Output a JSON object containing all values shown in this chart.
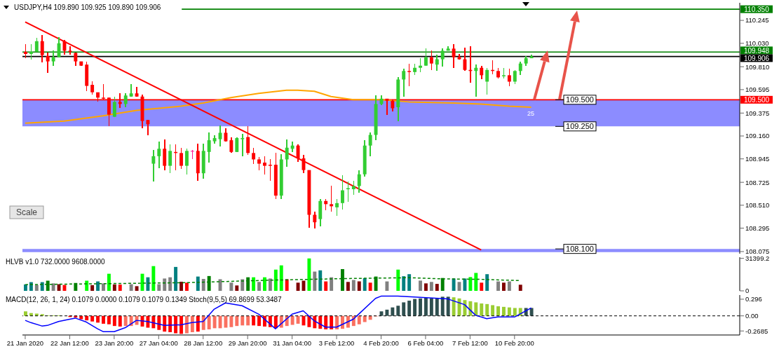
{
  "chart_data": [
    {
      "type": "candlestick",
      "title": "USDJPY,H4  109.890 109.925 109.890 109.906",
      "categories": [
        null,
        null,
        null,
        null,
        null,
        null,
        null,
        null,
        null,
        null,
        null,
        null,
        null,
        null,
        null,
        null,
        null,
        null,
        null,
        null,
        null,
        null,
        null,
        null,
        null,
        null,
        null,
        null,
        null,
        null,
        null,
        null,
        null,
        null,
        null,
        null,
        null,
        null,
        null,
        null,
        null,
        null,
        null,
        null,
        null,
        null,
        null,
        null,
        null,
        null,
        null,
        null,
        null,
        null,
        null,
        null,
        null,
        null,
        null,
        null,
        null,
        null,
        null,
        null,
        null,
        null,
        null,
        null,
        null,
        null,
        null,
        null,
        null,
        null,
        null,
        null,
        null,
        null,
        null,
        null,
        null,
        null,
        null,
        null,
        null,
        null,
        null,
        null,
        null,
        null,
        null,
        null,
        null,
        null,
        null,
        null,
        null,
        null,
        null,
        null,
        null,
        null,
        null,
        null,
        null,
        null,
        null,
        null,
        null,
        null,
        null,
        null,
        null,
        null,
        null,
        null,
        null,
        null,
        null,
        null,
        null,
        null,
        null,
        null,
        null,
        null,
        null,
        null,
        null
      ],
      "ohlc": [
        [
          109.95,
          110.02,
          109.89,
          109.93
        ],
        [
          109.93,
          110.02,
          109.88,
          109.95
        ],
        [
          109.95,
          110.08,
          109.95,
          110.05
        ],
        [
          110.05,
          110.11,
          109.85,
          109.92
        ],
        [
          109.91,
          109.94,
          109.75,
          109.86
        ],
        [
          109.86,
          109.96,
          109.82,
          109.9
        ],
        [
          109.9,
          110.09,
          109.9,
          110.03
        ],
        [
          110.05,
          110.06,
          109.92,
          109.96
        ],
        [
          109.96,
          110.0,
          109.92,
          109.95
        ],
        [
          109.94,
          109.94,
          109.82,
          109.86
        ],
        [
          109.86,
          109.86,
          109.82,
          109.82
        ],
        [
          109.83,
          109.86,
          109.58,
          109.63
        ],
        [
          109.64,
          109.67,
          109.55,
          109.57
        ],
        [
          109.57,
          109.57,
          109.48,
          109.52
        ],
        [
          109.52,
          109.65,
          109.5,
          109.51
        ],
        [
          109.52,
          109.52,
          109.25,
          109.36
        ],
        [
          109.34,
          109.53,
          109.34,
          109.48
        ],
        [
          109.48,
          109.56,
          109.42,
          109.46
        ],
        [
          109.46,
          109.56,
          109.43,
          109.54
        ],
        [
          109.53,
          109.65,
          109.53,
          109.56
        ],
        [
          109.56,
          109.62,
          109.53,
          109.53
        ],
        [
          109.53,
          109.55,
          109.23,
          109.3
        ],
        [
          109.31,
          109.31,
          109.17,
          109.27
        ],
        [
          108.9,
          109.03,
          108.73,
          108.97
        ],
        [
          108.97,
          109.11,
          108.86,
          109.04
        ],
        [
          109.04,
          109.13,
          108.84,
          108.88
        ],
        [
          108.88,
          109.08,
          108.81,
          109.02
        ],
        [
          109.01,
          109.08,
          108.84,
          109.0
        ],
        [
          109.0,
          109.05,
          108.85,
          108.88
        ],
        [
          108.88,
          109.04,
          108.8,
          109.02
        ],
        [
          109.02,
          109.03,
          108.94,
          109.02
        ],
        [
          109.02,
          109.09,
          108.74,
          108.81
        ],
        [
          108.81,
          109.09,
          108.76,
          109.02
        ],
        [
          109.01,
          109.19,
          108.91,
          109.12
        ],
        [
          109.11,
          109.17,
          109.09,
          109.14
        ],
        [
          109.13,
          109.26,
          109.06,
          109.19
        ],
        [
          109.19,
          109.23,
          109.11,
          109.11
        ],
        [
          109.12,
          109.15,
          109.0,
          109.01
        ],
        [
          109.01,
          109.15,
          109.01,
          109.14
        ],
        [
          109.13,
          109.18,
          108.97,
          109.14
        ],
        [
          109.15,
          109.25,
          108.98,
          109.0
        ],
        [
          109.0,
          109.05,
          108.9,
          108.94
        ],
        [
          108.94,
          108.96,
          108.84,
          108.9
        ],
        [
          108.91,
          108.97,
          108.8,
          108.88
        ],
        [
          108.89,
          108.94,
          108.74,
          108.88
        ],
        [
          108.89,
          109.0,
          108.57,
          108.6
        ],
        [
          108.6,
          108.99,
          108.57,
          108.94
        ],
        [
          108.94,
          109.13,
          108.87,
          109.05
        ],
        [
          109.04,
          109.11,
          109.01,
          109.07
        ],
        [
          109.07,
          109.08,
          108.92,
          108.95
        ],
        [
          108.95,
          108.98,
          108.81,
          108.84
        ],
        [
          108.84,
          108.84,
          108.3,
          108.42
        ],
        [
          108.42,
          108.45,
          108.29,
          108.35
        ],
        [
          108.38,
          108.57,
          108.31,
          108.55
        ],
        [
          108.55,
          108.57,
          108.46,
          108.52
        ],
        [
          108.52,
          108.69,
          108.45,
          108.5
        ],
        [
          108.49,
          108.57,
          108.41,
          108.53
        ],
        [
          108.53,
          108.79,
          108.47,
          108.65
        ],
        [
          108.66,
          108.73,
          108.54,
          108.67
        ],
        [
          108.66,
          108.74,
          108.61,
          108.69
        ],
        [
          108.69,
          108.84,
          108.63,
          108.8
        ],
        [
          108.8,
          109.12,
          108.78,
          109.07
        ],
        [
          109.07,
          109.19,
          108.97,
          109.17
        ],
        [
          109.17,
          109.54,
          109.12,
          109.46
        ],
        [
          109.46,
          109.54,
          109.45,
          109.51
        ],
        [
          109.51,
          109.51,
          109.36,
          109.49
        ],
        [
          109.49,
          109.5,
          109.39,
          109.42
        ],
        [
          109.43,
          109.71,
          109.3,
          109.69
        ],
        [
          109.69,
          109.79,
          109.53,
          109.77
        ],
        [
          109.77,
          109.84,
          109.63,
          109.76
        ],
        [
          109.76,
          109.84,
          109.73,
          109.8
        ],
        [
          109.8,
          109.89,
          109.76,
          109.82
        ],
        [
          109.82,
          109.98,
          109.82,
          109.9
        ],
        [
          109.9,
          109.96,
          109.78,
          109.84
        ],
        [
          109.83,
          109.92,
          109.77,
          109.88
        ],
        [
          109.88,
          109.98,
          109.81,
          109.96
        ],
        [
          109.96,
          110.0,
          109.96,
          109.98
        ],
        [
          109.98,
          110.02,
          109.8,
          109.9
        ],
        [
          109.9,
          109.93,
          109.88,
          109.88
        ],
        [
          109.88,
          109.99,
          109.77,
          109.78
        ],
        [
          109.78,
          110.0,
          109.66,
          109.77
        ],
        [
          109.77,
          109.83,
          109.53,
          109.8
        ],
        [
          109.8,
          109.82,
          109.69,
          109.73
        ],
        [
          109.67,
          109.8,
          109.55,
          109.78
        ],
        [
          109.78,
          109.87,
          109.74,
          109.77
        ],
        [
          109.77,
          109.8,
          109.7,
          109.71
        ],
        [
          109.72,
          109.8,
          109.7,
          109.73
        ],
        [
          109.73,
          109.79,
          109.63,
          109.67
        ],
        [
          109.67,
          109.78,
          109.65,
          109.77
        ],
        [
          109.77,
          109.86,
          109.73,
          109.84
        ],
        [
          109.84,
          109.91,
          109.82,
          109.89
        ],
        [
          109.89,
          109.925,
          109.89,
          109.906
        ],
        null,
        null,
        null,
        null,
        null,
        null,
        null,
        null,
        null,
        null,
        null,
        null,
        null,
        null,
        null,
        null,
        null,
        null,
        null,
        null,
        null,
        null,
        null,
        null,
        null,
        null,
        null,
        null,
        null,
        null,
        null,
        null,
        null,
        null,
        null,
        null,
        null
      ],
      "colors": [
        "#ff0000",
        "#32cd32",
        "#32cd32",
        "#ff0000",
        "#ff0000",
        "#32cd32",
        "#32cd32",
        "#ff0000",
        "#ff0000",
        "#ff0000",
        "#ff0000",
        "#ff0000",
        "#ff0000",
        "#ff0000",
        "#ff0000",
        "#ff0000",
        "#32cd32",
        "#ff0000",
        "#32cd32",
        "#32cd32",
        "#ff0000",
        "#ff0000",
        "#ff0000",
        "#32cd32",
        "#32cd32",
        "#ff0000",
        "#32cd32",
        "#ff0000",
        "#ff0000",
        "#32cd32",
        "#ff1493",
        "#ff0000",
        "#32cd32",
        "#32cd32",
        "#32cd32",
        "#32cd32",
        "#ff0000",
        "#ff0000",
        "#32cd32",
        "#32cd32",
        "#ff0000",
        "#ff0000",
        "#ff0000",
        "#ff0000",
        "#ff0000",
        "#ff0000",
        "#32cd32",
        "#32cd32",
        "#32cd32",
        "#ff0000",
        "#ff0000",
        "#ff0000",
        "#ff0000",
        "#32cd32",
        "#ff0000",
        "#ff0000",
        "#32cd32",
        "#32cd32",
        "#32cd32",
        "#32cd32",
        "#32cd32",
        "#32cd32",
        "#32cd32",
        "#32cd32",
        "#32cd32",
        "#ff0000",
        "#ff0000",
        "#32cd32",
        "#32cd32",
        "#ff0000",
        "#32cd32",
        "#32cd32",
        "#32cd32",
        "#ff0000",
        "#32cd32",
        "#32cd32",
        "#32cd32",
        "#ff0000",
        "#ff0000",
        "#ff0000",
        "#ff0000",
        "#32cd32",
        "#ff0000",
        "#32cd32",
        "#ff0000",
        "#ff0000",
        "#32cd32",
        "#ff0000",
        "#32cd32",
        "#32cd32",
        "#32cd32",
        "#32cd32",
        null,
        null,
        null,
        null,
        null,
        null,
        null,
        null,
        null,
        null,
        null,
        null,
        null,
        null,
        null,
        null,
        null,
        null,
        null,
        null,
        null,
        null,
        null,
        null,
        null,
        null,
        null,
        null,
        null,
        null,
        null,
        null,
        null,
        null,
        null,
        null,
        null
      ],
      "series": [
        {
          "type": "line",
          "color": "#ffa500",
          "values": [
            109.28,
            null,
            null,
            null,
            null,
            null,
            null,
            109.3,
            null,
            null,
            null,
            null,
            null,
            null,
            109.35,
            null,
            null,
            null,
            null,
            null,
            109.4,
            null,
            null,
            null,
            null,
            null,
            null,
            null,
            109.44,
            null,
            null,
            null,
            109.47,
            null,
            null,
            null,
            null,
            109.52,
            null,
            null,
            null,
            null,
            109.56,
            null,
            null,
            null,
            null,
            109.59,
            null,
            109.59,
            null,
            null,
            109.58,
            null,
            null,
            109.53,
            null,
            null,
            null,
            109.5,
            null,
            null,
            null,
            null,
            109.5,
            null,
            null,
            null,
            null,
            109.48,
            null,
            null,
            null,
            null,
            null,
            null,
            null,
            109.47,
            null,
            null,
            null,
            null,
            109.46,
            null,
            null,
            null,
            null,
            109.44,
            null,
            null,
            null,
            109.43,
            null,
            null,
            null,
            null,
            null,
            null,
            null,
            null,
            null,
            null,
            null,
            null,
            null,
            null,
            null,
            null,
            null,
            null,
            null,
            null,
            null,
            null,
            null,
            null,
            null,
            null,
            null,
            null,
            null,
            null,
            null,
            null,
            null,
            null,
            null,
            null,
            null
          ]
        },
        {
          "type": "line",
          "color": "#ff0000",
          "values": [
            110.23,
            null,
            null,
            null,
            null,
            null,
            null,
            null,
            null,
            null,
            null,
            null,
            null,
            null,
            null,
            null,
            null,
            null,
            null,
            null,
            null,
            null,
            null,
            null,
            null,
            null,
            null,
            null,
            null,
            null,
            null,
            null,
            null,
            null,
            null,
            null,
            null,
            null,
            null,
            null,
            null,
            null,
            null,
            null,
            null,
            null,
            null,
            null,
            null,
            null,
            null,
            null,
            null,
            null,
            null,
            null,
            null,
            null,
            null,
            null,
            null,
            null,
            null,
            null,
            null,
            null,
            null,
            null,
            null,
            null,
            null,
            null,
            null,
            null,
            null,
            null,
            null,
            null,
            null,
            null,
            null,
            null,
            108.09,
            null,
            null,
            null,
            null,
            null,
            null,
            null,
            null,
            null,
            null,
            null,
            null,
            null,
            null,
            null,
            null,
            null,
            null,
            null,
            null,
            null,
            null,
            null,
            null,
            null,
            null,
            null,
            null,
            null,
            null,
            null,
            null,
            null,
            null,
            null,
            null,
            null,
            null,
            null,
            null,
            null,
            null,
            null,
            null,
            null,
            null
          ]
        }
      ],
      "ylim": [
        108.055,
        110.41
      ],
      "yticks": [
        110.245,
        {
          "value": 110.03,
          "label": "110.030"
        },
        {
          "value": 109.81,
          "label": "109.810"
        },
        109.595,
        109.375,
        {
          "value": 109.16,
          "label": "109.160"
        },
        108.945,
        108.725,
        {
          "value": 108.51,
          "label": "108.510"
        },
        108.295,
        108.075
      ],
      "ref_lines": [
        {
          "axis": "y",
          "value": 110.35,
          "label": "110.350",
          "color": "#008000"
        },
        {
          "axis": "y",
          "value": 109.948,
          "label": "109.948",
          "color": "#008000"
        },
        {
          "axis": "y",
          "value": 109.906,
          "label": "109.906",
          "color": "#000000"
        },
        {
          "axis": "y",
          "value": 109.5,
          "label": "109.500",
          "color": "#ff0000"
        }
      ],
      "bands": [
        {
          "axis": "y",
          "from": 109.25,
          "to": 109.5,
          "label": "25",
          "color": "#0000ff"
        },
        {
          "axis": "y",
          "from": 108.07,
          "to": 108.1,
          "color": "#0000ff"
        }
      ],
      "annotations": [
        "Scale",
        {
          "text": "109.500",
          "y": 109.5
        },
        {
          "text": "109.250",
          "y": 109.25
        },
        {
          "text": "108.100",
          "y": 108.1
        }
      ],
      "tick_labels": "y"
    },
    {
      "type": "bar",
      "title": "HLVB v1.0 732.0000 9608.0000",
      "categories": [
        null,
        null,
        null,
        null,
        null,
        null,
        null,
        null,
        null,
        null,
        null,
        null,
        null,
        null,
        null,
        null,
        null,
        null,
        null,
        null,
        null,
        null,
        null,
        null,
        null,
        null,
        null,
        null,
        null,
        null,
        null,
        null,
        null,
        null,
        null,
        null,
        null,
        null,
        null,
        null,
        null,
        null,
        null,
        null,
        null,
        null,
        null,
        null,
        null,
        null,
        null,
        null,
        null,
        null,
        null,
        null,
        null,
        null,
        null,
        null,
        null,
        null,
        null,
        null,
        null,
        null,
        null,
        null,
        null,
        null,
        null,
        null,
        null,
        null,
        null,
        null,
        null,
        null,
        null,
        null,
        null,
        null,
        null,
        null,
        null,
        null,
        null,
        null,
        null,
        null,
        null,
        null,
        null,
        null,
        null,
        null,
        null,
        null,
        null,
        null,
        null,
        null,
        null,
        null,
        null,
        null,
        null,
        null,
        null,
        null,
        null,
        null,
        null,
        null,
        null,
        null,
        null,
        null,
        null,
        null,
        null,
        null,
        null,
        null,
        null,
        null,
        null,
        null,
        null
      ],
      "series": [
        {
          "type": "bar",
          "values": [
            6200,
            8400,
            5700,
            8400,
            9800,
            7200,
            6400,
            5700,
            null,
            7600,
            null,
            9800,
            5500,
            9100,
            7200,
            16500,
            6200,
            6000,
            null,
            6400,
            4500,
            16500,
            13100,
            23900,
            6400,
            11900,
            13100,
            23100,
            8800,
            7900,
            null,
            13800,
            11500,
            14300,
            null,
            11200,
            null,
            7900,
            5200,
            11200,
            13100,
            13100,
            8600,
            13100,
            11900,
            20500,
            24600,
            11200,
            null,
            7900,
            9800,
            31300,
            18600,
            19800,
            9100,
            13100,
            null,
            21000,
            8600,
            10500,
            9100,
            12200,
            7900,
            13800,
            null,
            9100,
            null,
            20500,
            14100,
            16100,
            null,
            9900,
            7200,
            8600,
            6700,
            12400,
            null,
            11900,
            8600,
            11900,
            13300,
            17300,
            7900,
            16100,
            null,
            9100,
            7900,
            9100,
            null,
            5900,
            null,
            null,
            null,
            null,
            null,
            null,
            null,
            null,
            null,
            null,
            null,
            null,
            null,
            null,
            null,
            null,
            null,
            null,
            null,
            null,
            null,
            null,
            null,
            null,
            null,
            null,
            null,
            null,
            null,
            null,
            null,
            null,
            null,
            null,
            null,
            null,
            null,
            null,
            null
          ],
          "colors": [
            "#008080",
            "#008080",
            "#808080",
            "#008080",
            "#008000",
            "#808080",
            "#800000",
            "#ff0000",
            null,
            "#008000",
            null,
            "#00ff00",
            "#800000",
            "#008080",
            "#808080",
            "#00ff00",
            "#800000",
            "#ff0000",
            null,
            "#808080",
            "#800000",
            "#00ff00",
            "#008080",
            "#00ff00",
            "#808080",
            "#808080",
            "#808080",
            "#008080",
            "#800000",
            "#ff0000",
            null,
            "#008080",
            "#808080",
            "#008000",
            null,
            "#808080",
            null,
            "#808080",
            "#800000",
            "#808080",
            "#008000",
            "#00ff00",
            "#808080",
            "#00ff00",
            "#808080",
            "#00ff00",
            "#00ff00",
            "#ff0000",
            null,
            "#800000",
            "#800000",
            "#00ff00",
            "#808080",
            "#008080",
            "#ff0000",
            "#808080",
            null,
            "#008000",
            "#800000",
            "#808080",
            "#800000",
            "#008080",
            "#ff0000",
            "#008000",
            null,
            "#808080",
            null,
            "#00ff00",
            "#008080",
            "#008080",
            null,
            "#808080",
            "#800000",
            "#808080",
            "#800000",
            "#008000",
            null,
            "#008080",
            "#808080",
            "#008080",
            "#00ff00",
            "#00ff00",
            "#ff0000",
            "#008080",
            null,
            "#808080",
            "#800000",
            "#808080",
            null,
            "#800000",
            null,
            null,
            null,
            null,
            null,
            null,
            null,
            null,
            null,
            null,
            null,
            null,
            null,
            null,
            null,
            null,
            null,
            null,
            null,
            null,
            null,
            null,
            null,
            null,
            null,
            null,
            null,
            null,
            null,
            null,
            null,
            null,
            null,
            null,
            null,
            null,
            null,
            null,
            null
          ]
        },
        {
          "type": "line",
          "color": "#008000",
          "line_style": "dashed",
          "values": [
            6000,
            null,
            null,
            null,
            null,
            null,
            null,
            null,
            null,
            null,
            null,
            null,
            null,
            null,
            null,
            null,
            null,
            null,
            null,
            null,
            null,
            null,
            null,
            null,
            null,
            null,
            null,
            null,
            null,
            7900,
            null,
            null,
            null,
            null,
            null,
            null,
            null,
            null,
            null,
            null,
            null,
            null,
            null,
            null,
            10300,
            null,
            null,
            null,
            null,
            null,
            null,
            null,
            null,
            null,
            null,
            null,
            null,
            null,
            11900,
            null,
            null,
            null,
            null,
            null,
            null,
            null,
            null,
            null,
            null,
            12700,
            null,
            null,
            null,
            null,
            null,
            11600,
            null,
            null,
            null,
            null,
            null,
            null,
            11100,
            null,
            null,
            null,
            null,
            null,
            null,
            9900,
            null,
            null,
            null,
            null,
            null,
            null,
            null,
            null,
            null,
            null,
            null,
            null,
            null,
            null,
            null,
            null,
            null,
            null,
            null,
            null,
            null,
            null,
            null,
            null,
            null,
            null,
            null,
            null,
            null,
            null,
            null,
            null,
            null,
            null,
            null,
            null,
            null,
            null,
            null
          ]
        }
      ],
      "ylim": [
        0,
        32500
      ],
      "yticks": [
        0,
        31399.2
      ],
      "tick_labels": "y"
    },
    {
      "type": "bar",
      "title": "MACD(12, 26, 1, 24) 0.1079 0.0000 0.1079 0.1079 0.1349  Stoch(9,5,5) 69.8699 53.3487",
      "categories": [
        "21 Jan 2020",
        null,
        null,
        null,
        null,
        null,
        null,
        null,
        "22 Jan 12:00",
        null,
        null,
        null,
        null,
        null,
        null,
        null,
        "23 Jan 20:00",
        null,
        null,
        null,
        null,
        null,
        null,
        null,
        "27 Jan 04:00",
        null,
        null,
        null,
        null,
        null,
        null,
        null,
        "28 Jan 12:00",
        null,
        null,
        null,
        null,
        null,
        null,
        null,
        "29 Jan 20:00",
        null,
        null,
        null,
        null,
        null,
        null,
        null,
        "31 Jan 04:00",
        null,
        null,
        null,
        null,
        null,
        null,
        null,
        "3 Feb 12:00",
        null,
        null,
        null,
        null,
        null,
        null,
        null,
        "4 Feb 20:00",
        null,
        null,
        null,
        null,
        null,
        null,
        null,
        "6 Feb 04:00",
        null,
        null,
        null,
        null,
        null,
        null,
        null,
        "7 Feb 12:00",
        null,
        null,
        null,
        null,
        null,
        null,
        null,
        "10 Feb 20:00",
        null,
        null,
        null,
        null,
        null,
        null,
        null,
        null,
        null,
        null,
        null,
        null,
        null,
        null,
        null,
        null,
        null,
        null,
        null,
        null,
        null,
        null,
        null,
        null,
        null,
        null,
        null,
        null,
        null,
        null,
        null,
        null,
        null,
        null,
        null,
        null,
        null,
        null,
        null,
        null
      ],
      "series": [
        {
          "type": "bar",
          "values": [
            0.08,
            0.05,
            0.04,
            0.03,
            0.01,
            0.01,
            0.01,
            null,
            -0.02,
            -0.03,
            -0.06,
            -0.08,
            -0.1,
            -0.12,
            -0.14,
            -0.15,
            -0.18,
            -0.19,
            -0.18,
            -0.18,
            -0.16,
            -0.19,
            -0.21,
            -0.22,
            -0.25,
            -0.28,
            -0.29,
            -0.31,
            -0.32,
            -0.31,
            -0.29,
            -0.28,
            -0.25,
            -0.24,
            -0.22,
            -0.22,
            -0.21,
            -0.2,
            -0.18,
            -0.17,
            -0.17,
            -0.17,
            -0.18,
            -0.19,
            -0.2,
            -0.22,
            -0.21,
            -0.18,
            -0.16,
            -0.14,
            -0.17,
            -0.2,
            -0.22,
            -0.23,
            -0.24,
            -0.24,
            -0.24,
            -0.23,
            -0.21,
            -0.18,
            -0.15,
            -0.11,
            -0.07,
            -0.01,
            0.08,
            0.11,
            0.15,
            0.18,
            0.24,
            0.27,
            0.3,
            0.31,
            0.32,
            0.31,
            0.31,
            0.34,
            0.34,
            0.33,
            0.31,
            0.28,
            0.26,
            0.24,
            0.22,
            0.21,
            0.19,
            0.17,
            0.16,
            0.15,
            0.14,
            0.14,
            0.14,
            0.14,
            null,
            null,
            null,
            null,
            null,
            null,
            null,
            null,
            null,
            null,
            null,
            null,
            null,
            null,
            null,
            null,
            null,
            null,
            null,
            null,
            null,
            null,
            null,
            null,
            null,
            null,
            null,
            null,
            null,
            null,
            null,
            null,
            null,
            null,
            null,
            null,
            null
          ],
          "colors": [
            "#9acd32",
            "#9acd32",
            "#9acd32",
            "#9acd32",
            "#9acd32",
            "#9acd32",
            "#9acd32",
            null,
            "#ff0000",
            "#ff0000",
            "#ff0000",
            "#ff0000",
            "#ff0000",
            "#ff0000",
            "#ff0000",
            "#ff0000",
            "#ff0000",
            "#ff0000",
            "#fa7060",
            "#fa7060",
            "#fa7060",
            "#ff0000",
            "#ff0000",
            "#ff0000",
            "#ff0000",
            "#ff0000",
            "#ff0000",
            "#ff0000",
            "#ff0000",
            "#fa7060",
            "#fa7060",
            "#ff0000",
            "#fa7060",
            "#fa7060",
            "#fa7060",
            "#fa7060",
            "#fa7060",
            "#fa7060",
            "#fa7060",
            "#fa7060",
            "#fa7060",
            "#ff0000",
            "#ff0000",
            "#ff0000",
            "#ff0000",
            "#ff0000",
            "#fa7060",
            "#fa7060",
            "#fa7060",
            "#fa7060",
            "#ff0000",
            "#ff0000",
            "#ff0000",
            "#ff0000",
            "#ff0000",
            "#ff0000",
            "#fa7060",
            "#fa7060",
            "#fa7060",
            "#fa7060",
            "#fa7060",
            "#fa7060",
            "#fa7060",
            "#fa7060",
            "#2f4f4f",
            "#2f4f4f",
            "#2f4f4f",
            "#2f4f4f",
            "#2f4f4f",
            "#2f4f4f",
            "#2f4f4f",
            "#2f4f4f",
            "#2f4f4f",
            "#2f4f4f",
            "#2f4f4f",
            "#2f4f4f",
            "#2f4f4f",
            "#9acd32",
            "#9acd32",
            "#9acd32",
            "#9acd32",
            "#9acd32",
            "#9acd32",
            "#9acd32",
            "#9acd32",
            "#9acd32",
            "#9acd32",
            "#9acd32",
            "#9acd32",
            "#9acd32",
            "#2f4f4f",
            "#2f4f4f",
            null,
            null,
            null,
            null,
            null,
            null,
            null,
            null,
            null,
            null,
            null,
            null,
            null,
            null,
            null,
            null,
            null,
            null,
            null,
            null,
            null,
            null,
            null,
            null,
            null,
            null,
            null,
            null,
            null,
            null,
            null,
            null,
            null,
            null,
            null,
            null,
            null
          ]
        },
        {
          "type": "line",
          "color": "#0000ff",
          "values": [
            -0.08,
            -0.12,
            null,
            -0.18,
            -0.17,
            null,
            -0.1,
            null,
            -0.06,
            -0.04,
            null,
            -0.11,
            null,
            -0.23,
            -0.28,
            null,
            -0.28,
            null,
            -0.21,
            null,
            -0.08,
            null,
            -0.1,
            null,
            null,
            -0.17,
            null,
            null,
            -0.16,
            null,
            -0.12,
            null,
            -0.1,
            null,
            0.12,
            null,
            0.23,
            null,
            null,
            0.18,
            null,
            null,
            0.03,
            null,
            null,
            -0.23,
            null,
            null,
            0.03,
            null,
            0.09,
            null,
            -0.09,
            null,
            -0.2,
            null,
            -0.2,
            null,
            null,
            -0.06,
            null,
            null,
            null,
            0.31,
            0.35,
            null,
            null,
            0.35,
            null,
            null,
            null,
            0.33,
            null,
            null,
            null,
            null,
            0.3,
            null,
            null,
            0.2,
            null,
            0.01,
            null,
            -0.05,
            null,
            -0.02,
            null,
            null,
            -0.02,
            null,
            null,
            0.14,
            null,
            null,
            null,
            null,
            null,
            null,
            null,
            null,
            null,
            null,
            null,
            null,
            null,
            null,
            null,
            null,
            null,
            null,
            null,
            null,
            null,
            null,
            null,
            null,
            null,
            null,
            null,
            null,
            null,
            null,
            null,
            null,
            null,
            null,
            null,
            null,
            null
          ]
        }
      ],
      "ylim": [
        -0.34,
        0.37
      ],
      "yticks": [
        -0.2685,
        {
          "value": 0,
          "label": "0.00"
        },
        0.296
      ],
      "ref_lines": [
        {
          "axis": "y",
          "value": 0,
          "color": "#000000",
          "line_style": "dashed"
        }
      ]
    }
  ]
}
